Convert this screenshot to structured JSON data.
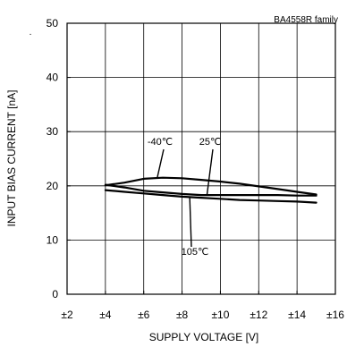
{
  "chart_data": {
    "type": "line",
    "title": "",
    "corner_label": "BA4558R  family",
    "corner_dot": ".",
    "xlabel": "SUPPLY VOLTAGE [V]",
    "ylabel": "INPUT BIAS CURRENT [nA]",
    "xlim": [
      2,
      16
    ],
    "ylim": [
      0,
      50
    ],
    "x_ticks": [
      2,
      4,
      6,
      8,
      10,
      12,
      14,
      16
    ],
    "x_tick_labels": [
      "±2",
      "±4",
      "±6",
      "±8",
      "±10",
      "±12",
      "±14",
      "±16"
    ],
    "y_ticks": [
      0,
      10,
      20,
      30,
      40,
      50
    ],
    "y_tick_labels": [
      "0",
      "10",
      "20",
      "30",
      "40",
      "50"
    ],
    "grid": true,
    "series": [
      {
        "name": "-40℃",
        "x": [
          4,
          5,
          6,
          7,
          8,
          9,
          10,
          11,
          12,
          13,
          14,
          15
        ],
        "y": [
          20.1,
          20.6,
          21.3,
          21.5,
          21.4,
          21.1,
          20.8,
          20.4,
          19.9,
          19.4,
          18.9,
          18.4
        ]
      },
      {
        "name": "25℃",
        "x": [
          4,
          5,
          6,
          7,
          8,
          9,
          10,
          11,
          12,
          13,
          14,
          15
        ],
        "y": [
          20.2,
          19.7,
          19.1,
          18.8,
          18.5,
          18.3,
          18.3,
          18.3,
          18.3,
          18.3,
          18.2,
          18.2
        ]
      },
      {
        "name": "105℃",
        "x": [
          4,
          5,
          6,
          7,
          8,
          9,
          10,
          11,
          12,
          13,
          14,
          15
        ],
        "y": [
          19.2,
          18.9,
          18.6,
          18.3,
          18.0,
          17.8,
          17.6,
          17.4,
          17.3,
          17.2,
          17.1,
          16.9
        ]
      }
    ],
    "annotations": [
      {
        "text": "-40℃",
        "series": "-40℃"
      },
      {
        "text": "25℃",
        "series": "25℃"
      },
      {
        "text": "105℃",
        "series": "105℃"
      }
    ]
  }
}
